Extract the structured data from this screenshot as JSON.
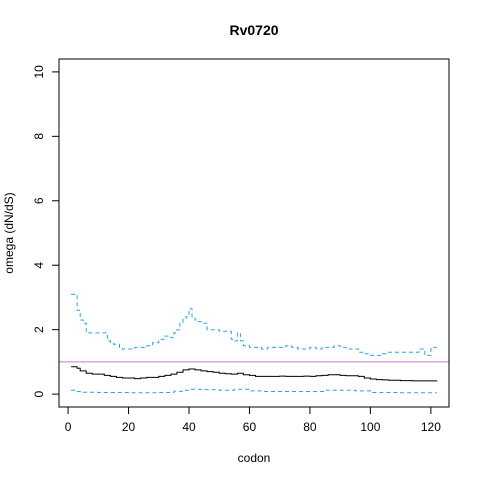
{
  "chart_data": {
    "type": "line",
    "title": "Rv0720",
    "xlabel": "codon",
    "ylabel": "omega (dN/dS)",
    "xlim": [
      -3,
      126
    ],
    "ylim": [
      -0.4,
      10.4
    ],
    "x_ticks": [
      0,
      20,
      40,
      60,
      80,
      100,
      120
    ],
    "y_ticks": [
      0,
      2,
      4,
      6,
      8,
      10
    ],
    "grid": false,
    "legend": "none",
    "reference_line": {
      "y": 1,
      "color": "#cc79cc"
    },
    "series": [
      {
        "style": "dashed",
        "color": "#29a3e0",
        "x": [
          1,
          3,
          4,
          5,
          6,
          7,
          8,
          10,
          12,
          13,
          14,
          15,
          17,
          18,
          20,
          22,
          24,
          26,
          28,
          30,
          32,
          34,
          35,
          36,
          37,
          38,
          39,
          40,
          41,
          42,
          43,
          44,
          46,
          48,
          50,
          52,
          54,
          55,
          56,
          57,
          58,
          60,
          62,
          64,
          66,
          68,
          70,
          72,
          74,
          76,
          78,
          80,
          82,
          84,
          86,
          88,
          90,
          92,
          94,
          96,
          98,
          100,
          102,
          104,
          106,
          108,
          110,
          112,
          114,
          116,
          118,
          120,
          122
        ],
        "y": [
          3.1,
          2.6,
          2.3,
          2.2,
          1.95,
          1.9,
          1.9,
          1.9,
          1.9,
          1.65,
          1.6,
          1.55,
          1.45,
          1.4,
          1.4,
          1.45,
          1.45,
          1.5,
          1.6,
          1.7,
          1.8,
          1.75,
          1.9,
          2.0,
          2.2,
          2.35,
          2.4,
          2.65,
          2.4,
          2.3,
          2.25,
          2.2,
          2.0,
          2.0,
          1.95,
          1.95,
          1.7,
          1.65,
          1.9,
          1.65,
          1.5,
          1.45,
          1.45,
          1.4,
          1.45,
          1.45,
          1.45,
          1.5,
          1.45,
          1.4,
          1.4,
          1.45,
          1.4,
          1.45,
          1.45,
          1.5,
          1.45,
          1.4,
          1.4,
          1.3,
          1.25,
          1.2,
          1.2,
          1.25,
          1.3,
          1.3,
          1.3,
          1.3,
          1.3,
          1.4,
          1.2,
          1.45,
          1.45
        ]
      },
      {
        "style": "solid",
        "color": "#000000",
        "x": [
          1,
          3,
          4,
          6,
          8,
          10,
          12,
          14,
          16,
          18,
          20,
          22,
          24,
          26,
          28,
          30,
          32,
          34,
          36,
          38,
          40,
          42,
          44,
          46,
          48,
          50,
          52,
          54,
          56,
          58,
          60,
          62,
          64,
          66,
          68,
          70,
          72,
          74,
          76,
          78,
          80,
          82,
          84,
          86,
          88,
          90,
          92,
          94,
          96,
          98,
          100,
          102,
          104,
          106,
          108,
          110,
          112,
          114,
          116,
          118,
          120,
          122
        ],
        "y": [
          0.85,
          0.8,
          0.72,
          0.65,
          0.62,
          0.62,
          0.58,
          0.55,
          0.52,
          0.5,
          0.5,
          0.48,
          0.5,
          0.52,
          0.52,
          0.55,
          0.58,
          0.62,
          0.68,
          0.75,
          0.78,
          0.75,
          0.72,
          0.7,
          0.68,
          0.65,
          0.63,
          0.62,
          0.65,
          0.6,
          0.58,
          0.55,
          0.55,
          0.55,
          0.55,
          0.56,
          0.55,
          0.55,
          0.55,
          0.56,
          0.55,
          0.57,
          0.58,
          0.6,
          0.6,
          0.58,
          0.57,
          0.57,
          0.55,
          0.5,
          0.47,
          0.45,
          0.44,
          0.43,
          0.43,
          0.42,
          0.42,
          0.41,
          0.41,
          0.41,
          0.41,
          0.42
        ]
      },
      {
        "style": "dashed",
        "color": "#29a3e0",
        "x": [
          1,
          3,
          5,
          10,
          20,
          30,
          35,
          38,
          40,
          45,
          50,
          55,
          60,
          65,
          70,
          80,
          85,
          90,
          95,
          100,
          110,
          122
        ],
        "y": [
          0.12,
          0.08,
          0.06,
          0.05,
          0.04,
          0.05,
          0.09,
          0.12,
          0.15,
          0.14,
          0.12,
          0.15,
          0.1,
          0.08,
          0.08,
          0.08,
          0.12,
          0.12,
          0.1,
          0.05,
          0.04,
          0.04
        ]
      }
    ]
  }
}
